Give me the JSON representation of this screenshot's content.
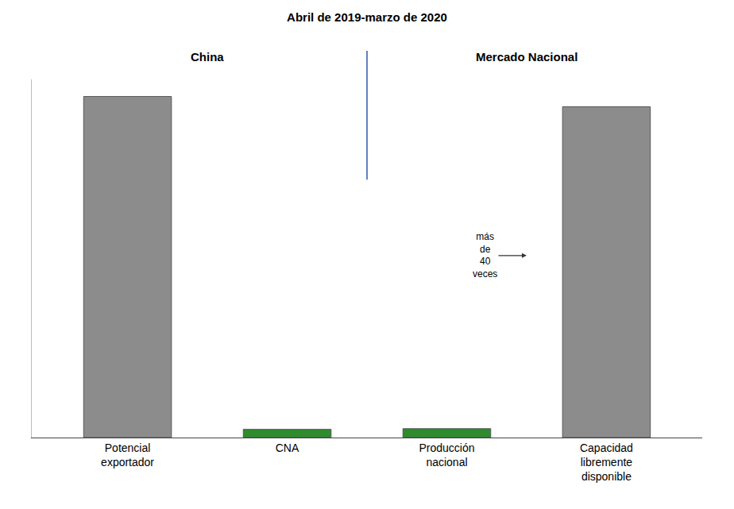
{
  "chart_data": {
    "type": "bar",
    "title": "Abril de 2019-marzo de 2020",
    "categories": [
      "Potencial exportador",
      "CNA",
      "Producción nacional",
      "Capacidad libremente disponible"
    ],
    "values": [
      100,
      2.4,
      2.6,
      97
    ],
    "colors": [
      "#8c8c8c",
      "#2e8b2e",
      "#2e8b2e",
      "#8c8c8c"
    ],
    "ylim": [
      0,
      105
    ],
    "tick_labels": "x",
    "grid": false,
    "groups": [
      {
        "label": "China",
        "categories": [
          "Potencial exportador",
          "CNA"
        ]
      },
      {
        "label": "Mercado Nacional",
        "categories": [
          "Producción nacional",
          "Capacidad libremente disponible"
        ]
      }
    ],
    "annotations": [
      {
        "text": "más de 40 veces",
        "category": "Capacidad libremente disponible"
      }
    ]
  }
}
